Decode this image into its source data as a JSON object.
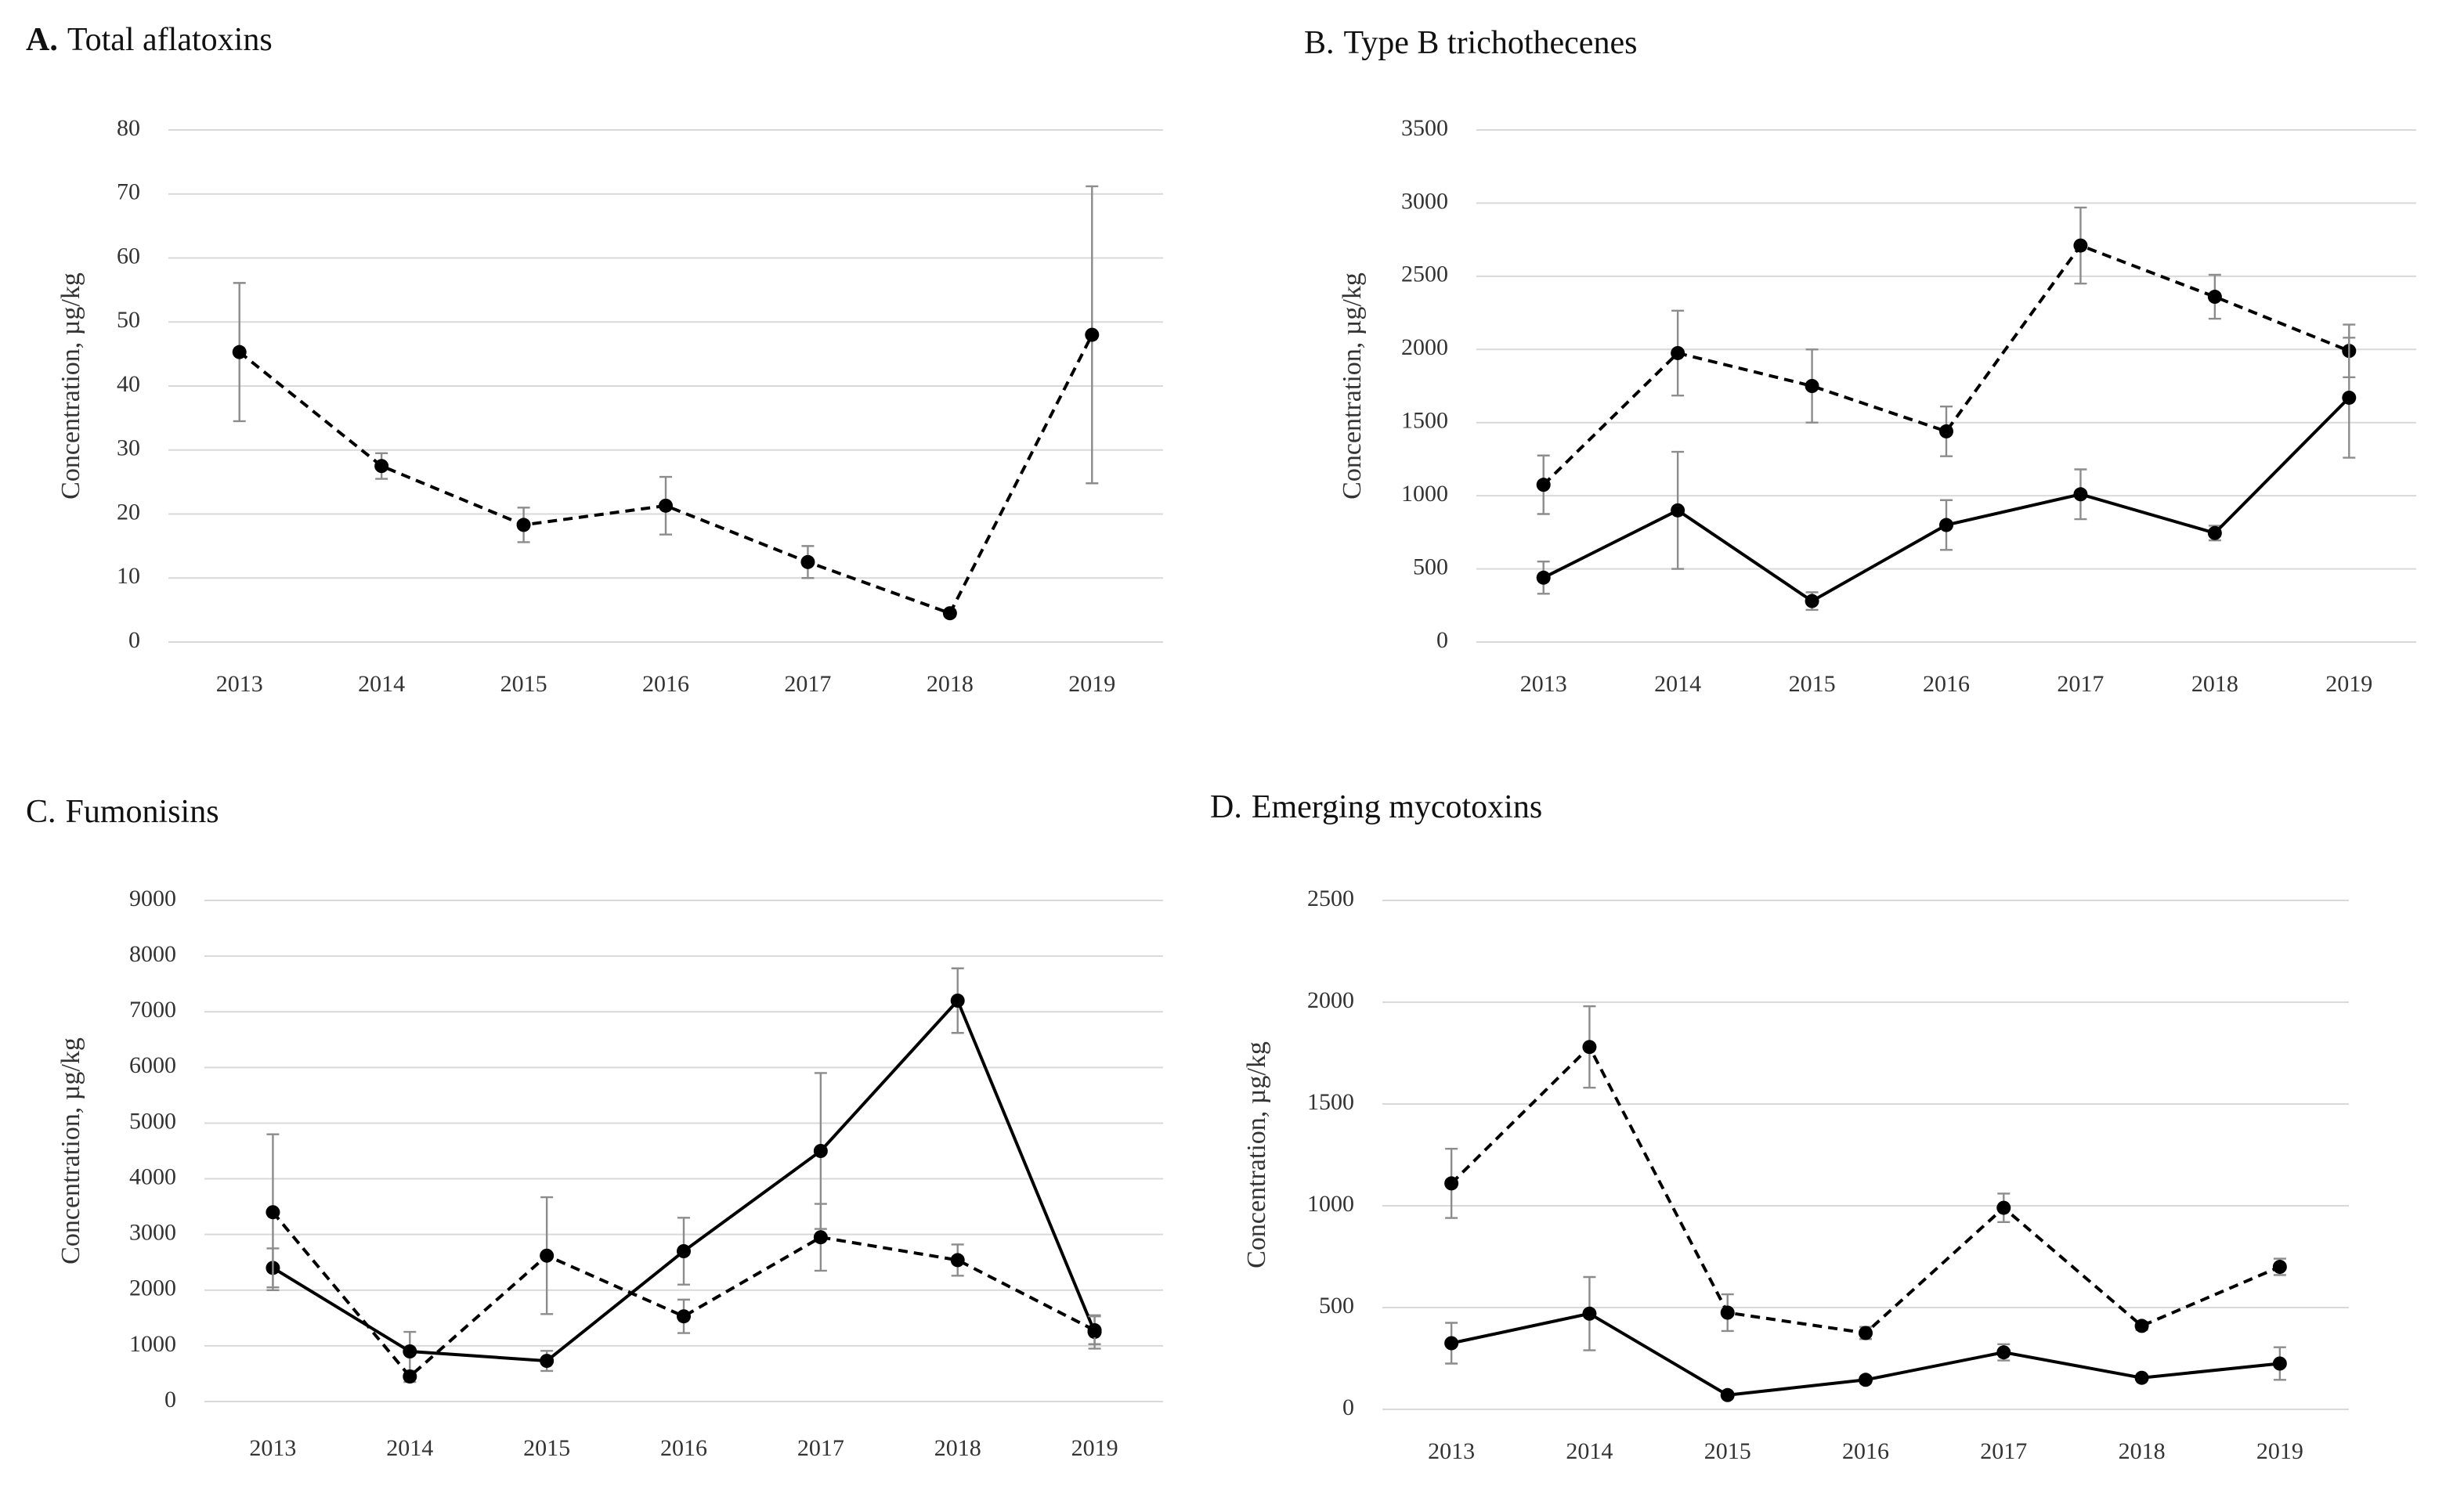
{
  "chart_data": [
    {
      "type": "line",
      "panel": "A.",
      "title": "Total aflatoxins",
      "y_label": "Concentration, µg/kg",
      "categories": [
        "2013",
        "2014",
        "2015",
        "2016",
        "2017",
        "2018",
        "2019"
      ],
      "ylim": [
        0,
        80
      ],
      "yticks": [
        0,
        10,
        20,
        30,
        40,
        50,
        60,
        70,
        80
      ],
      "grid": true,
      "error_color": "#8c8c8c",
      "series": [
        {
          "color": "#000000",
          "style": "dashed",
          "values": [
            45.3,
            27.5,
            18.3,
            21.3,
            12.5,
            4.5,
            48
          ],
          "errors": [
            10.8,
            2,
            2.7,
            4.5,
            2.5,
            0.5,
            23.2
          ]
        }
      ]
    },
    {
      "type": "line",
      "panel": "B.",
      "title": "Type B trichothecenes",
      "y_label": "Concentration, µg/kg",
      "categories": [
        "2013",
        "2014",
        "2015",
        "2016",
        "2017",
        "2018",
        "2019"
      ],
      "ylim": [
        0,
        3500
      ],
      "yticks": [
        0,
        500,
        1000,
        1500,
        2000,
        2500,
        3000,
        3500
      ],
      "grid": true,
      "error_color": "#8c8c8c",
      "series": [
        {
          "color": "#000000",
          "style": "dashed",
          "values": [
            1075,
            1975,
            1750,
            1440,
            2710,
            2360,
            1990
          ],
          "errors": [
            200,
            290,
            250,
            170,
            260,
            150,
            180
          ]
        },
        {
          "color": "#000000",
          "style": "solid",
          "values": [
            440,
            900,
            280,
            800,
            1010,
            745,
            1670
          ],
          "errors": [
            110,
            400,
            60,
            170,
            170,
            50,
            410
          ]
        }
      ]
    },
    {
      "type": "line",
      "panel": "C.",
      "title": "Fumonisins",
      "y_label": "Concentration, µg/kg",
      "categories": [
        "2013",
        "2014",
        "2015",
        "2016",
        "2017",
        "2018",
        "2019"
      ],
      "ylim": [
        0,
        9000
      ],
      "yticks": [
        0,
        1000,
        2000,
        3000,
        4000,
        5000,
        6000,
        7000,
        8000,
        9000
      ],
      "grid": true,
      "error_color": "#8c8c8c",
      "series": [
        {
          "color": "#000000",
          "style": "solid",
          "values": [
            2400,
            900,
            730,
            2700,
            4500,
            7200,
            1250
          ],
          "errors": [
            350,
            350,
            180,
            600,
            1400,
            580,
            300
          ]
        },
        {
          "color": "#000000",
          "style": "dashed",
          "values": [
            3400,
            450,
            2620,
            1530,
            2950,
            2540,
            1280
          ],
          "errors": [
            1400,
            100,
            1050,
            300,
            600,
            280,
            250
          ]
        }
      ]
    },
    {
      "type": "line",
      "panel": "D.",
      "title": "Emerging mycotoxins",
      "y_label": "Concentration, µg/kg",
      "categories": [
        "2013",
        "2014",
        "2015",
        "2016",
        "2017",
        "2018",
        "2019"
      ],
      "ylim": [
        0,
        2500
      ],
      "yticks": [
        0,
        500,
        1000,
        1500,
        2000,
        2500
      ],
      "grid": true,
      "error_color": "#8c8c8c",
      "series": [
        {
          "color": "#000000",
          "style": "dashed",
          "values": [
            1110,
            1780,
            475,
            375,
            990,
            410,
            700
          ],
          "errors": [
            170,
            200,
            90,
            30,
            70,
            20,
            40
          ]
        },
        {
          "color": "#000000",
          "style": "solid",
          "values": [
            325,
            470,
            70,
            145,
            280,
            155,
            225
          ],
          "errors": [
            100,
            180,
            10,
            15,
            40,
            10,
            80
          ]
        }
      ]
    }
  ]
}
